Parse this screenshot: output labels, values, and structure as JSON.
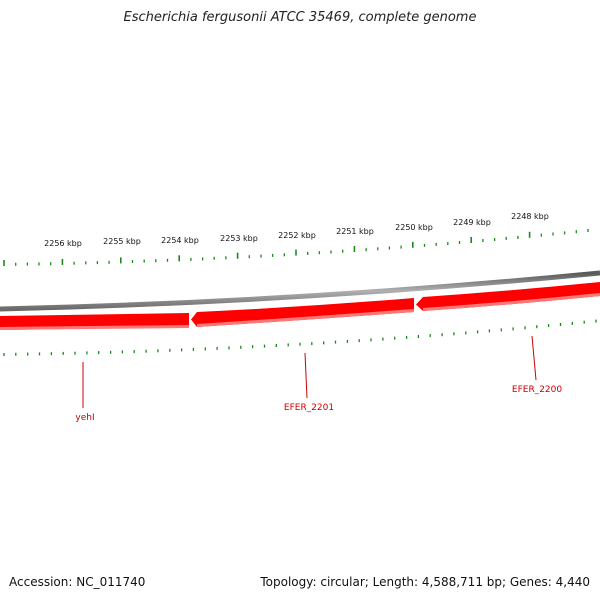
{
  "title": "Escherichia fergusonii ATCC 35469, complete genome",
  "footer": {
    "accession": "Accession: NC_011740",
    "summary": "Topology: circular; Length: 4,588,711 bp; Genes: 4,440"
  },
  "scale_labels": [
    "2256 kbp",
    "2255 kbp",
    "2254 kbp",
    "2253 kbp",
    "2252 kbp",
    "2251 kbp",
    "2250 kbp",
    "2249 kbp",
    "2248 kbp"
  ],
  "genes": [
    {
      "label": "yehI"
    },
    {
      "label": "EFER_2201"
    },
    {
      "label": "EFER_2200"
    }
  ],
  "colors": {
    "gene": "#ff0000",
    "tick": "#1a8a1a",
    "backbone": "#808080",
    "gene_label": "#cc0000"
  }
}
